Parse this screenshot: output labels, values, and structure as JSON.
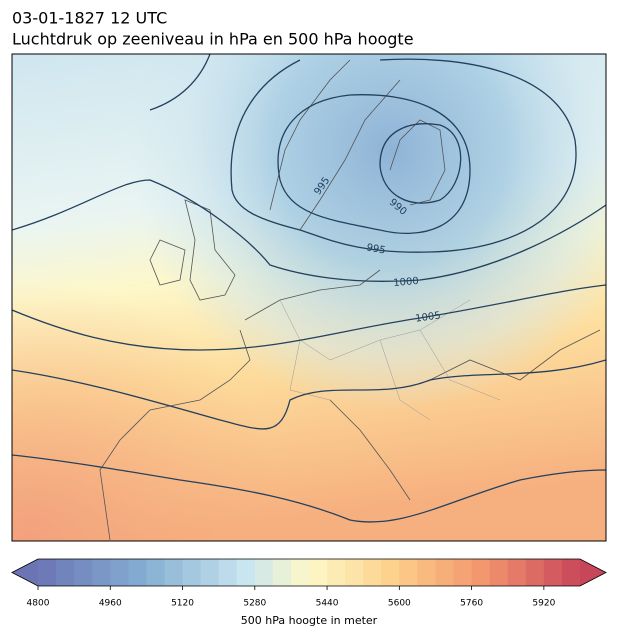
{
  "header": {
    "title": "03-01-1827 12 UTC",
    "subtitle": "Luchtdruk op zeeniveau in hPa en 500 hPa hoogte"
  },
  "map": {
    "isobar_labels": [
      995,
      990,
      995,
      1000,
      1005
    ]
  },
  "colorbar": {
    "lim": [
      4800,
      6000
    ],
    "ticks": [
      4800,
      4960,
      5120,
      5280,
      5440,
      5600,
      5760,
      5920
    ],
    "label": "500 hPa hoogte in meter"
  }
}
